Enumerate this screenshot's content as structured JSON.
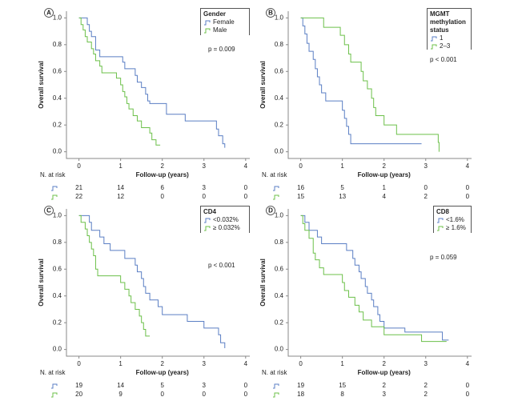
{
  "chart_data": [
    {
      "type": "line",
      "step": true,
      "panel": "A",
      "xlabel": "Follow-up (years)",
      "ylabel": "Overall survival",
      "annotation": "p = 0.009",
      "legend_title": "Gender",
      "at_risk_label": "N. at risk",
      "xlim": [
        -0.3,
        4.1
      ],
      "ylim": [
        -0.05,
        1.05
      ],
      "xticks": [
        0,
        1,
        2,
        3,
        4
      ],
      "yticks": [
        {
          "value": 0,
          "label": "0.0"
        },
        0.2,
        0.4,
        0.6,
        0.8,
        {
          "value": 1,
          "label": "1.0"
        }
      ],
      "series": [
        {
          "name": "Female",
          "color": "#5b7fc4",
          "x": [
            0,
            0.2,
            0.25,
            0.3,
            0.4,
            0.5,
            1.05,
            1.1,
            1.35,
            1.4,
            1.5,
            1.6,
            1.65,
            1.7,
            2.1,
            2.55,
            3.3,
            3.35,
            3.45,
            3.5
          ],
          "values": [
            1,
            0.95,
            0.9,
            0.86,
            0.76,
            0.71,
            0.67,
            0.62,
            0.57,
            0.52,
            0.48,
            0.43,
            0.38,
            0.36,
            0.28,
            0.23,
            0.17,
            0.12,
            0.06,
            0.03
          ],
          "at_risk": [
            21,
            14,
            6,
            3,
            0
          ]
        },
        {
          "name": "Male",
          "color": "#6cc04a",
          "x": [
            0,
            0.05,
            0.1,
            0.15,
            0.2,
            0.3,
            0.35,
            0.4,
            0.5,
            0.55,
            0.9,
            1,
            1.05,
            1.1,
            1.15,
            1.2,
            1.3,
            1.4,
            1.5,
            1.7,
            1.75,
            1.85,
            1.95
          ],
          "values": [
            1,
            0.95,
            0.91,
            0.86,
            0.82,
            0.77,
            0.73,
            0.68,
            0.64,
            0.59,
            0.55,
            0.5,
            0.45,
            0.41,
            0.36,
            0.32,
            0.27,
            0.23,
            0.18,
            0.14,
            0.09,
            0.05,
            0.05
          ],
          "at_risk": [
            22,
            12,
            0,
            0,
            0
          ]
        }
      ]
    },
    {
      "type": "line",
      "step": true,
      "panel": "B",
      "xlabel": "Follow-up (years)",
      "ylabel": "Overall survival",
      "annotation": "p < 0.001",
      "legend_title": "MGMT methylation status",
      "at_risk_label": "N. at risk",
      "xlim": [
        -0.3,
        4.1
      ],
      "ylim": [
        -0.05,
        1.05
      ],
      "xticks": [
        0,
        1,
        2,
        3,
        4
      ],
      "yticks": [
        {
          "value": 0,
          "label": "0.0"
        },
        0.2,
        0.4,
        0.6,
        0.8,
        {
          "value": 1,
          "label": "1.0"
        }
      ],
      "series": [
        {
          "name": "1",
          "color": "#5b7fc4",
          "x": [
            0,
            0.05,
            0.1,
            0.15,
            0.2,
            0.3,
            0.35,
            0.4,
            0.45,
            0.5,
            0.6,
            1,
            1.05,
            1.1,
            1.15,
            1.2,
            2.9
          ],
          "values": [
            1,
            0.94,
            0.88,
            0.81,
            0.75,
            0.69,
            0.62,
            0.56,
            0.5,
            0.44,
            0.38,
            0.31,
            0.25,
            0.19,
            0.13,
            0.06,
            0.06
          ],
          "at_risk": [
            16,
            5,
            1,
            0,
            0
          ]
        },
        {
          "name": "2–3",
          "color": "#6cc04a",
          "x": [
            0,
            0.55,
            0.95,
            1.05,
            1.15,
            1.2,
            1.45,
            1.5,
            1.6,
            1.7,
            1.75,
            1.8,
            2,
            2.3,
            3.3,
            3.32
          ],
          "values": [
            1,
            0.93,
            0.87,
            0.8,
            0.73,
            0.67,
            0.6,
            0.53,
            0.47,
            0.4,
            0.33,
            0.27,
            0.2,
            0.13,
            0.07,
            0
          ],
          "at_risk": [
            15,
            13,
            4,
            2,
            0
          ]
        }
      ]
    },
    {
      "type": "line",
      "step": true,
      "panel": "C",
      "xlabel": "Follow-up (years)",
      "ylabel": "Overall survival",
      "annotation": "p < 0.001",
      "legend_title": "CD4",
      "at_risk_label": "N. at risk",
      "xlim": [
        -0.3,
        4.1
      ],
      "ylim": [
        -0.05,
        1.05
      ],
      "xticks": [
        0,
        1,
        2,
        3,
        4
      ],
      "yticks": [
        {
          "value": 0,
          "label": "0.0"
        },
        0.2,
        0.4,
        0.6,
        0.8,
        {
          "value": 1,
          "label": "1.0"
        }
      ],
      "series": [
        {
          "name": "<0.032%",
          "color": "#5b7fc4",
          "x": [
            0,
            0.25,
            0.3,
            0.5,
            0.6,
            0.75,
            1.1,
            1.35,
            1.4,
            1.5,
            1.55,
            1.6,
            1.7,
            1.9,
            2,
            2.6,
            3,
            3.35,
            3.4,
            3.5
          ],
          "values": [
            1,
            0.95,
            0.89,
            0.84,
            0.79,
            0.74,
            0.68,
            0.63,
            0.58,
            0.53,
            0.47,
            0.42,
            0.37,
            0.32,
            0.26,
            0.21,
            0.16,
            0.11,
            0.05,
            0.01
          ],
          "at_risk": [
            19,
            14,
            5,
            3,
            0
          ]
        },
        {
          "name": "≥ 0.032%",
          "color": "#6cc04a",
          "x": [
            0,
            0.05,
            0.15,
            0.2,
            0.25,
            0.3,
            0.35,
            0.4,
            0.45,
            1,
            1.1,
            1.2,
            1.25,
            1.35,
            1.45,
            1.5,
            1.55,
            1.6,
            1.7
          ],
          "values": [
            1,
            0.95,
            0.9,
            0.85,
            0.8,
            0.75,
            0.7,
            0.6,
            0.55,
            0.5,
            0.45,
            0.4,
            0.35,
            0.3,
            0.25,
            0.2,
            0.15,
            0.1,
            0.1
          ],
          "at_risk": [
            20,
            9,
            0,
            0,
            0
          ]
        }
      ]
    },
    {
      "type": "line",
      "step": true,
      "panel": "D",
      "xlabel": "Follow-up (years)",
      "ylabel": "Overall survival",
      "annotation": "p = 0.059",
      "legend_title": "CD8",
      "at_risk_label": "N. at risk",
      "xlim": [
        -0.3,
        4.1
      ],
      "ylim": [
        -0.05,
        1.05
      ],
      "xticks": [
        0,
        1,
        2,
        3,
        4
      ],
      "yticks": [
        {
          "value": 0,
          "label": "0.0"
        },
        0.2,
        0.4,
        0.6,
        0.8,
        {
          "value": 1,
          "label": "1.0"
        }
      ],
      "series": [
        {
          "name": "<1.6%",
          "color": "#5b7fc4",
          "x": [
            0,
            0.1,
            0.2,
            0.4,
            0.5,
            1.1,
            1.25,
            1.3,
            1.4,
            1.45,
            1.55,
            1.6,
            1.7,
            1.75,
            1.85,
            1.9,
            2,
            2.5,
            3.4,
            3.55
          ],
          "values": [
            1,
            0.95,
            0.89,
            0.84,
            0.79,
            0.74,
            0.68,
            0.63,
            0.58,
            0.53,
            0.47,
            0.42,
            0.37,
            0.32,
            0.26,
            0.21,
            0.16,
            0.13,
            0.07,
            0.07
          ],
          "at_risk": [
            19,
            15,
            2,
            2,
            0
          ]
        },
        {
          "name": "≥ 1.6%",
          "color": "#6cc04a",
          "x": [
            0,
            0.05,
            0.1,
            0.2,
            0.3,
            0.35,
            0.45,
            0.55,
            1,
            1.05,
            1.15,
            1.3,
            1.4,
            1.5,
            1.7,
            2,
            2.9,
            3.5
          ],
          "values": [
            1,
            0.94,
            0.89,
            0.83,
            0.72,
            0.67,
            0.61,
            0.56,
            0.5,
            0.44,
            0.39,
            0.33,
            0.28,
            0.22,
            0.17,
            0.11,
            0.06,
            0.06
          ],
          "at_risk": [
            18,
            8,
            3,
            2,
            0
          ]
        }
      ]
    }
  ]
}
